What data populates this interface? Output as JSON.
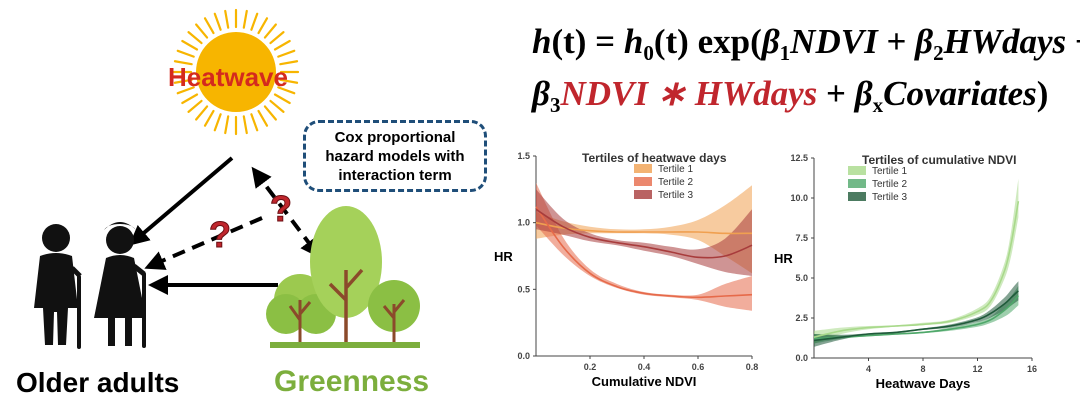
{
  "diagram": {
    "heatwave_label": "Heatwave",
    "callout_lines": [
      "Cox proportional",
      "hazard models with",
      "interaction term"
    ],
    "older_adults_label": "Older adults",
    "greenness_label": "Greenness",
    "question_mark": "?",
    "colors": {
      "heatwave_text": "#d42a1e",
      "sun": "#f7b500",
      "greenness_text": "#7cae3d",
      "callout_border": "#1f4e79",
      "question": "#c0262d"
    }
  },
  "equation": {
    "line1": {
      "h": "h",
      "t": "(t) = ",
      "h0": "h",
      "sub0": "0",
      "t2": "(t)",
      "exp": "exp(",
      "b1": "β",
      "sub1": "1",
      "ndvi": "NDVI",
      "plus1": " + ",
      "b2": "β",
      "sub2": "2",
      "hw": "HWdays",
      "plus2": " +"
    },
    "line2": {
      "b3": "β",
      "sub3": "3",
      "inter": "NDVI ∗ HWdays",
      "plus3": " + ",
      "bx": "β",
      "subx": "x",
      "cov": "Covariates",
      "close": ")"
    }
  },
  "chart_data": [
    {
      "type": "line",
      "title": "Tertiles of heatwave days",
      "xlabel": "Cumulative NDVI",
      "ylabel": "HR",
      "xlim": [
        0,
        0.8
      ],
      "ylim": [
        0,
        1.5
      ],
      "xticks": [
        "0.2",
        "0.4",
        "0.6",
        "0.8"
      ],
      "yticks": [
        "0.0",
        "0.5",
        "1.0",
        "1.5"
      ],
      "legend_position": "top-right",
      "x": [
        0,
        0.1,
        0.2,
        0.3,
        0.4,
        0.5,
        0.6,
        0.7,
        0.8
      ],
      "series": [
        {
          "name": "Tertile 1",
          "color": "#f0a050",
          "values": [
            1.0,
            0.96,
            0.94,
            0.93,
            0.93,
            0.93,
            0.93,
            0.92,
            0.92
          ],
          "lower": [
            0.88,
            0.91,
            0.92,
            0.92,
            0.92,
            0.91,
            0.87,
            0.75,
            0.62
          ],
          "upper": [
            1.08,
            1.01,
            0.97,
            0.95,
            0.95,
            0.97,
            1.02,
            1.13,
            1.28
          ]
        },
        {
          "name": "Tertile 2",
          "color": "#e66a4a",
          "values": [
            1.12,
            0.82,
            0.62,
            0.52,
            0.47,
            0.45,
            0.44,
            0.45,
            0.46
          ],
          "lower": [
            0.98,
            0.76,
            0.6,
            0.51,
            0.46,
            0.44,
            0.42,
            0.37,
            0.34
          ],
          "upper": [
            1.3,
            0.89,
            0.65,
            0.54,
            0.48,
            0.46,
            0.46,
            0.54,
            0.6
          ]
        },
        {
          "name": "Tertile 3",
          "color": "#a83c3c",
          "values": [
            1.1,
            0.97,
            0.89,
            0.85,
            0.82,
            0.78,
            0.74,
            0.75,
            0.83
          ],
          "lower": [
            0.95,
            0.91,
            0.86,
            0.83,
            0.79,
            0.75,
            0.69,
            0.63,
            0.6
          ],
          "upper": [
            1.25,
            1.03,
            0.92,
            0.87,
            0.85,
            0.82,
            0.8,
            0.88,
            1.1
          ]
        }
      ]
    },
    {
      "type": "line",
      "title": "Tertiles of cumulative NDVI",
      "xlabel": "Heatwave Days",
      "ylabel": "HR",
      "xlim": [
        0,
        16
      ],
      "ylim": [
        0,
        12.5
      ],
      "xticks": [
        "4",
        "8",
        "12",
        "16"
      ],
      "yticks": [
        "0.0",
        "2.5",
        "5.0",
        "7.5",
        "10.0",
        "12.5"
      ],
      "legend_position": "top-left",
      "x": [
        0,
        2,
        4,
        6,
        8,
        10,
        12,
        13,
        14,
        14.5,
        15
      ],
      "series": [
        {
          "name": "Tertile 1",
          "color": "#a8d98a",
          "values": [
            1.3,
            1.7,
            1.9,
            2.0,
            2.1,
            2.3,
            2.9,
            3.6,
            5.5,
            7.3,
            9.8
          ],
          "lower": [
            0.9,
            1.5,
            1.8,
            1.95,
            2.05,
            2.2,
            2.7,
            3.3,
            5.0,
            6.5,
            8.8
          ],
          "upper": [
            1.7,
            1.9,
            2.0,
            2.05,
            2.2,
            2.4,
            3.1,
            3.9,
            6.0,
            8.1,
            11.2
          ]
        },
        {
          "name": "Tertile 2",
          "color": "#4fa86a",
          "values": [
            1.2,
            1.3,
            1.4,
            1.5,
            1.6,
            1.8,
            2.1,
            2.4,
            3.0,
            3.4,
            3.9
          ],
          "lower": [
            0.9,
            1.2,
            1.35,
            1.45,
            1.55,
            1.7,
            1.95,
            2.2,
            2.6,
            2.9,
            3.3
          ],
          "upper": [
            1.5,
            1.4,
            1.45,
            1.55,
            1.65,
            1.9,
            2.25,
            2.6,
            3.4,
            3.9,
            4.5
          ]
        },
        {
          "name": "Tertile 3",
          "color": "#1f5a3a",
          "values": [
            1.1,
            1.3,
            1.5,
            1.6,
            1.8,
            2.0,
            2.4,
            2.8,
            3.4,
            3.8,
            4.2
          ],
          "lower": [
            0.7,
            1.15,
            1.45,
            1.55,
            1.75,
            1.9,
            2.25,
            2.55,
            3.0,
            3.3,
            3.6
          ],
          "upper": [
            1.5,
            1.45,
            1.55,
            1.65,
            1.85,
            2.1,
            2.55,
            3.05,
            3.8,
            4.3,
            4.8
          ]
        }
      ]
    }
  ]
}
